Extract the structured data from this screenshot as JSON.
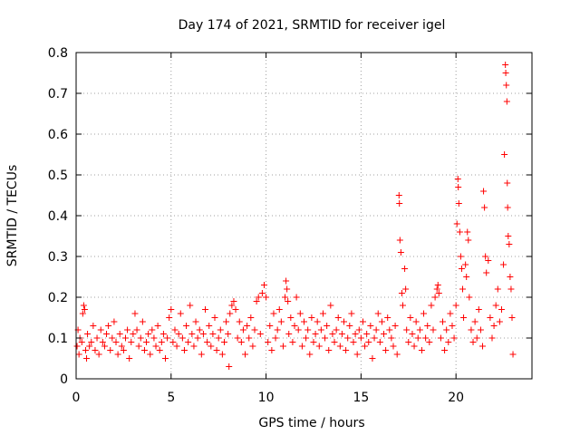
{
  "chart_data": {
    "type": "scatter",
    "title": "Day 174 of 2021, SRMTID for receiver igel",
    "xlabel": "GPS time / hours",
    "ylabel": "SRMTID / TECUs",
    "xlim": [
      0,
      24
    ],
    "ylim": [
      0,
      0.8
    ],
    "xticks": [
      0,
      5,
      10,
      15,
      20
    ],
    "yticks": [
      0,
      0.1,
      0.2,
      0.3,
      0.4,
      0.5,
      0.6,
      0.7,
      0.8
    ],
    "xtick_labels": [
      "0",
      "5",
      "10",
      "15",
      "20"
    ],
    "ytick_labels": [
      "0",
      "0.1",
      "0.2",
      "0.3",
      "0.4",
      "0.5",
      "0.6",
      "0.7",
      "0.8"
    ],
    "grid": true,
    "marker": "+",
    "color": "#ff0000",
    "series": [
      {
        "name": "SRMTID",
        "points": [
          [
            0.05,
            0.08
          ],
          [
            0.1,
            0.12
          ],
          [
            0.15,
            0.06
          ],
          [
            0.2,
            0.1
          ],
          [
            0.3,
            0.09
          ],
          [
            0.35,
            0.16
          ],
          [
            0.4,
            0.18
          ],
          [
            0.45,
            0.17
          ],
          [
            0.5,
            0.07
          ],
          [
            0.55,
            0.05
          ],
          [
            0.6,
            0.11
          ],
          [
            0.7,
            0.08
          ],
          [
            0.8,
            0.09
          ],
          [
            0.9,
            0.13
          ],
          [
            1.0,
            0.07
          ],
          [
            1.1,
            0.1
          ],
          [
            1.2,
            0.06
          ],
          [
            1.3,
            0.12
          ],
          [
            1.4,
            0.09
          ],
          [
            1.5,
            0.08
          ],
          [
            1.6,
            0.11
          ],
          [
            1.7,
            0.13
          ],
          [
            1.8,
            0.07
          ],
          [
            1.9,
            0.1
          ],
          [
            2.0,
            0.14
          ],
          [
            2.1,
            0.09
          ],
          [
            2.2,
            0.06
          ],
          [
            2.3,
            0.11
          ],
          [
            2.4,
            0.08
          ],
          [
            2.5,
            0.07
          ],
          [
            2.6,
            0.1
          ],
          [
            2.7,
            0.12
          ],
          [
            2.8,
            0.05
          ],
          [
            2.9,
            0.09
          ],
          [
            3.0,
            0.11
          ],
          [
            3.1,
            0.16
          ],
          [
            3.2,
            0.12
          ],
          [
            3.3,
            0.08
          ],
          [
            3.4,
            0.1
          ],
          [
            3.5,
            0.14
          ],
          [
            3.6,
            0.07
          ],
          [
            3.7,
            0.09
          ],
          [
            3.8,
            0.11
          ],
          [
            3.9,
            0.06
          ],
          [
            4.0,
            0.12
          ],
          [
            4.1,
            0.1
          ],
          [
            4.2,
            0.08
          ],
          [
            4.3,
            0.13
          ],
          [
            4.4,
            0.07
          ],
          [
            4.5,
            0.09
          ],
          [
            4.6,
            0.11
          ],
          [
            4.7,
            0.05
          ],
          [
            4.8,
            0.1
          ],
          [
            4.9,
            0.15
          ],
          [
            5.0,
            0.17
          ],
          [
            5.1,
            0.09
          ],
          [
            5.2,
            0.12
          ],
          [
            5.3,
            0.08
          ],
          [
            5.4,
            0.11
          ],
          [
            5.5,
            0.16
          ],
          [
            5.6,
            0.1
          ],
          [
            5.7,
            0.07
          ],
          [
            5.8,
            0.13
          ],
          [
            5.9,
            0.09
          ],
          [
            6.0,
            0.18
          ],
          [
            6.1,
            0.11
          ],
          [
            6.2,
            0.08
          ],
          [
            6.3,
            0.14
          ],
          [
            6.4,
            0.1
          ],
          [
            6.5,
            0.12
          ],
          [
            6.6,
            0.06
          ],
          [
            6.7,
            0.11
          ],
          [
            6.8,
            0.17
          ],
          [
            6.9,
            0.09
          ],
          [
            7.0,
            0.13
          ],
          [
            7.1,
            0.08
          ],
          [
            7.2,
            0.11
          ],
          [
            7.3,
            0.15
          ],
          [
            7.4,
            0.07
          ],
          [
            7.5,
            0.1
          ],
          [
            7.6,
            0.12
          ],
          [
            7.7,
            0.06
          ],
          [
            7.8,
            0.09
          ],
          [
            7.9,
            0.14
          ],
          [
            8.0,
            0.11
          ],
          [
            8.05,
            0.03
          ],
          [
            8.1,
            0.16
          ],
          [
            8.2,
            0.18
          ],
          [
            8.3,
            0.19
          ],
          [
            8.4,
            0.17
          ],
          [
            8.5,
            0.1
          ],
          [
            8.6,
            0.14
          ],
          [
            8.7,
            0.09
          ],
          [
            8.8,
            0.12
          ],
          [
            8.9,
            0.06
          ],
          [
            9.0,
            0.13
          ],
          [
            9.1,
            0.1
          ],
          [
            9.2,
            0.15
          ],
          [
            9.3,
            0.08
          ],
          [
            9.4,
            0.12
          ],
          [
            9.5,
            0.19
          ],
          [
            9.6,
            0.2
          ],
          [
            9.7,
            0.11
          ],
          [
            9.8,
            0.21
          ],
          [
            9.9,
            0.23
          ],
          [
            10.0,
            0.2
          ],
          [
            10.1,
            0.09
          ],
          [
            10.2,
            0.13
          ],
          [
            10.3,
            0.07
          ],
          [
            10.4,
            0.16
          ],
          [
            10.5,
            0.1
          ],
          [
            10.6,
            0.12
          ],
          [
            10.7,
            0.17
          ],
          [
            10.8,
            0.14
          ],
          [
            10.9,
            0.08
          ],
          [
            11.0,
            0.2
          ],
          [
            11.05,
            0.24
          ],
          [
            11.1,
            0.22
          ],
          [
            11.15,
            0.19
          ],
          [
            11.2,
            0.11
          ],
          [
            11.3,
            0.15
          ],
          [
            11.4,
            0.09
          ],
          [
            11.5,
            0.13
          ],
          [
            11.6,
            0.2
          ],
          [
            11.7,
            0.12
          ],
          [
            11.8,
            0.16
          ],
          [
            11.9,
            0.08
          ],
          [
            12.0,
            0.14
          ],
          [
            12.1,
            0.1
          ],
          [
            12.2,
            0.12
          ],
          [
            12.3,
            0.06
          ],
          [
            12.4,
            0.15
          ],
          [
            12.5,
            0.09
          ],
          [
            12.6,
            0.11
          ],
          [
            12.7,
            0.14
          ],
          [
            12.8,
            0.08
          ],
          [
            12.9,
            0.12
          ],
          [
            13.0,
            0.16
          ],
          [
            13.1,
            0.1
          ],
          [
            13.2,
            0.13
          ],
          [
            13.3,
            0.07
          ],
          [
            13.4,
            0.18
          ],
          [
            13.5,
            0.11
          ],
          [
            13.6,
            0.09
          ],
          [
            13.7,
            0.12
          ],
          [
            13.8,
            0.15
          ],
          [
            13.9,
            0.08
          ],
          [
            14.0,
            0.11
          ],
          [
            14.1,
            0.14
          ],
          [
            14.2,
            0.07
          ],
          [
            14.3,
            0.1
          ],
          [
            14.4,
            0.13
          ],
          [
            14.5,
            0.16
          ],
          [
            14.6,
            0.09
          ],
          [
            14.7,
            0.11
          ],
          [
            14.8,
            0.06
          ],
          [
            14.9,
            0.12
          ],
          [
            15.0,
            0.1
          ],
          [
            15.1,
            0.14
          ],
          [
            15.2,
            0.08
          ],
          [
            15.3,
            0.11
          ],
          [
            15.4,
            0.09
          ],
          [
            15.5,
            0.13
          ],
          [
            15.6,
            0.05
          ],
          [
            15.7,
            0.1
          ],
          [
            15.8,
            0.12
          ],
          [
            15.9,
            0.16
          ],
          [
            16.0,
            0.09
          ],
          [
            16.1,
            0.14
          ],
          [
            16.2,
            0.11
          ],
          [
            16.3,
            0.07
          ],
          [
            16.4,
            0.15
          ],
          [
            16.5,
            0.12
          ],
          [
            16.6,
            0.1
          ],
          [
            16.7,
            0.08
          ],
          [
            16.8,
            0.13
          ],
          [
            16.9,
            0.06
          ],
          [
            17.0,
            0.45
          ],
          [
            17.02,
            0.43
          ],
          [
            17.05,
            0.34
          ],
          [
            17.1,
            0.31
          ],
          [
            17.15,
            0.21
          ],
          [
            17.2,
            0.18
          ],
          [
            17.3,
            0.27
          ],
          [
            17.35,
            0.22
          ],
          [
            17.4,
            0.12
          ],
          [
            17.5,
            0.09
          ],
          [
            17.6,
            0.15
          ],
          [
            17.7,
            0.11
          ],
          [
            17.8,
            0.08
          ],
          [
            17.9,
            0.14
          ],
          [
            18.0,
            0.1
          ],
          [
            18.1,
            0.12
          ],
          [
            18.2,
            0.07
          ],
          [
            18.3,
            0.16
          ],
          [
            18.4,
            0.1
          ],
          [
            18.5,
            0.13
          ],
          [
            18.6,
            0.09
          ],
          [
            18.7,
            0.18
          ],
          [
            18.8,
            0.12
          ],
          [
            18.9,
            0.2
          ],
          [
            19.0,
            0.22
          ],
          [
            19.05,
            0.23
          ],
          [
            19.1,
            0.21
          ],
          [
            19.2,
            0.1
          ],
          [
            19.3,
            0.14
          ],
          [
            19.4,
            0.07
          ],
          [
            19.5,
            0.12
          ],
          [
            19.6,
            0.09
          ],
          [
            19.7,
            0.16
          ],
          [
            19.8,
            0.13
          ],
          [
            19.9,
            0.1
          ],
          [
            20.0,
            0.18
          ],
          [
            20.05,
            0.38
          ],
          [
            20.1,
            0.49
          ],
          [
            20.12,
            0.47
          ],
          [
            20.15,
            0.43
          ],
          [
            20.2,
            0.36
          ],
          [
            20.25,
            0.3
          ],
          [
            20.3,
            0.27
          ],
          [
            20.35,
            0.22
          ],
          [
            20.4,
            0.15
          ],
          [
            20.5,
            0.28
          ],
          [
            20.55,
            0.25
          ],
          [
            20.6,
            0.36
          ],
          [
            20.65,
            0.34
          ],
          [
            20.7,
            0.2
          ],
          [
            20.8,
            0.12
          ],
          [
            20.9,
            0.09
          ],
          [
            21.0,
            0.14
          ],
          [
            21.1,
            0.1
          ],
          [
            21.2,
            0.17
          ],
          [
            21.3,
            0.12
          ],
          [
            21.4,
            0.08
          ],
          [
            21.45,
            0.46
          ],
          [
            21.5,
            0.42
          ],
          [
            21.55,
            0.3
          ],
          [
            21.6,
            0.26
          ],
          [
            21.7,
            0.29
          ],
          [
            21.8,
            0.15
          ],
          [
            21.9,
            0.1
          ],
          [
            22.0,
            0.13
          ],
          [
            22.1,
            0.18
          ],
          [
            22.2,
            0.22
          ],
          [
            22.3,
            0.14
          ],
          [
            22.4,
            0.17
          ],
          [
            22.5,
            0.28
          ],
          [
            22.55,
            0.55
          ],
          [
            22.6,
            0.77
          ],
          [
            22.62,
            0.75
          ],
          [
            22.65,
            0.72
          ],
          [
            22.68,
            0.68
          ],
          [
            22.7,
            0.48
          ],
          [
            22.72,
            0.42
          ],
          [
            22.75,
            0.35
          ],
          [
            22.8,
            0.33
          ],
          [
            22.85,
            0.25
          ],
          [
            22.9,
            0.22
          ],
          [
            22.95,
            0.15
          ],
          [
            23.0,
            0.06
          ]
        ]
      }
    ]
  }
}
